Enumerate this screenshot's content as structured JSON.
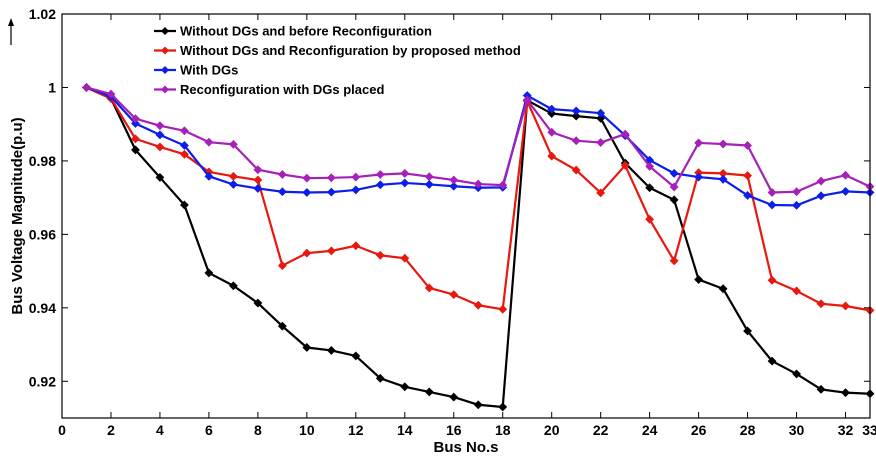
{
  "chart_data": {
    "type": "line",
    "xlabel": "Bus No.s",
    "ylabel": "Bus Voltage Magnitude(p.u)",
    "xlim": [
      0,
      33
    ],
    "ylim": [
      0.91,
      1.02
    ],
    "xticks": [
      0,
      2,
      4,
      6,
      8,
      10,
      12,
      14,
      16,
      18,
      20,
      22,
      24,
      26,
      28,
      30,
      32,
      33
    ],
    "yticks": [
      0.92,
      0.94,
      0.96,
      0.98,
      1,
      1.02
    ],
    "ytick_labels": [
      "0.92",
      "0.94",
      "0.96",
      "0.98",
      "1",
      "1.02"
    ],
    "grid": false,
    "legend_position": "top-left",
    "x": [
      1,
      2,
      3,
      4,
      5,
      6,
      7,
      8,
      9,
      10,
      11,
      12,
      13,
      14,
      15,
      16,
      17,
      18,
      19,
      20,
      21,
      22,
      23,
      24,
      25,
      26,
      27,
      28,
      29,
      30,
      31,
      32,
      33
    ],
    "series": [
      {
        "name": "Without DGs and before Reconfiguration",
        "color": "#000000",
        "values": [
          1.0,
          0.997,
          0.983,
          0.9755,
          0.968,
          0.9495,
          0.946,
          0.9413,
          0.935,
          0.9292,
          0.9284,
          0.9269,
          0.9208,
          0.9185,
          0.9171,
          0.9157,
          0.9136,
          0.913,
          0.9965,
          0.9929,
          0.9922,
          0.9916,
          0.9794,
          0.9727,
          0.9694,
          0.9477,
          0.9452,
          0.9337,
          0.9255,
          0.922,
          0.9178,
          0.9169,
          0.9166
        ]
      },
      {
        "name": "Without DGs and Reconfiguration by proposed method",
        "color": "#e8180e",
        "values": [
          1.0,
          0.997,
          0.986,
          0.9838,
          0.9818,
          0.977,
          0.9758,
          0.9748,
          0.9515,
          0.9549,
          0.9555,
          0.9569,
          0.9543,
          0.9535,
          0.9454,
          0.9436,
          0.9407,
          0.9396,
          0.9963,
          0.9813,
          0.9775,
          0.9713,
          0.9788,
          0.9641,
          0.9528,
          0.9768,
          0.9766,
          0.976,
          0.9475,
          0.9446,
          0.9411,
          0.9405,
          0.9393
        ]
      },
      {
        "name": "With DGs",
        "color": "#0d1ee8",
        "values": [
          1.0,
          0.9975,
          0.9902,
          0.9871,
          0.9842,
          0.9758,
          0.9736,
          0.9725,
          0.9716,
          0.9714,
          0.9715,
          0.9721,
          0.9735,
          0.974,
          0.9736,
          0.9731,
          0.9727,
          0.9728,
          0.9978,
          0.9941,
          0.9936,
          0.993,
          0.9869,
          0.9802,
          0.9766,
          0.9756,
          0.975,
          0.9706,
          0.968,
          0.9679,
          0.9705,
          0.9717,
          0.9714
        ]
      },
      {
        "name": "Reconfiguration with DGs placed",
        "color": "#a521b8",
        "values": [
          1.0,
          0.9982,
          0.9915,
          0.9896,
          0.9882,
          0.9851,
          0.9845,
          0.9776,
          0.9763,
          0.9753,
          0.9754,
          0.9756,
          0.9763,
          0.9766,
          0.9757,
          0.9748,
          0.9737,
          0.9734,
          0.9966,
          0.9878,
          0.9855,
          0.985,
          0.9873,
          0.9785,
          0.9729,
          0.9849,
          0.9846,
          0.9842,
          0.9714,
          0.9716,
          0.9745,
          0.9761,
          0.973
        ]
      }
    ]
  }
}
